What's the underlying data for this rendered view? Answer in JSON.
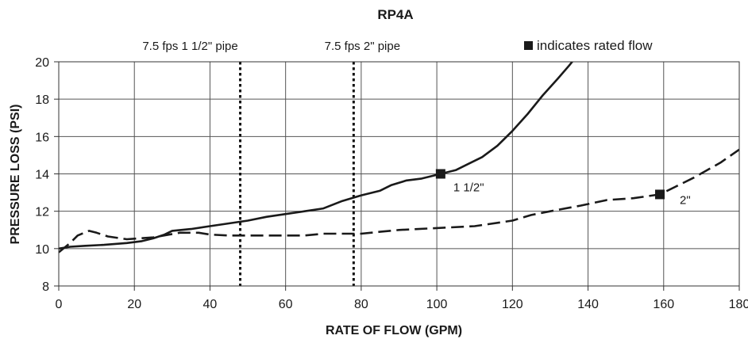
{
  "chart_data": {
    "type": "line",
    "title": "RP4A",
    "xlabel": "RATE OF FLOW (GPM)",
    "ylabel": "PRESSURE LOSS (PSI)",
    "xlim": [
      0,
      180
    ],
    "ylim": [
      8,
      20
    ],
    "x_ticks": [
      0,
      20,
      40,
      60,
      80,
      100,
      120,
      140,
      160,
      180
    ],
    "y_ticks": [
      8,
      10,
      12,
      14,
      16,
      18,
      20
    ],
    "grid": true,
    "legend_note": "indicates rated flow",
    "series": [
      {
        "name": "1 1/2\"",
        "style": "solid",
        "color": "#1a1a1a",
        "points": [
          [
            0,
            10.0
          ],
          [
            3,
            10.1
          ],
          [
            7,
            10.15
          ],
          [
            12,
            10.2
          ],
          [
            18,
            10.3
          ],
          [
            22,
            10.4
          ],
          [
            25,
            10.55
          ],
          [
            28,
            10.75
          ],
          [
            30,
            10.95
          ],
          [
            35,
            11.05
          ],
          [
            40,
            11.2
          ],
          [
            45,
            11.35
          ],
          [
            50,
            11.5
          ],
          [
            55,
            11.7
          ],
          [
            60,
            11.85
          ],
          [
            65,
            12.0
          ],
          [
            70,
            12.15
          ],
          [
            75,
            12.55
          ],
          [
            80,
            12.85
          ],
          [
            85,
            13.1
          ],
          [
            88,
            13.4
          ],
          [
            92,
            13.65
          ],
          [
            96,
            13.75
          ],
          [
            101,
            14.0
          ],
          [
            105,
            14.2
          ],
          [
            108,
            14.5
          ],
          [
            112,
            14.9
          ],
          [
            116,
            15.5
          ],
          [
            120,
            16.3
          ],
          [
            124,
            17.2
          ],
          [
            128,
            18.2
          ],
          [
            132,
            19.1
          ],
          [
            135,
            19.8
          ],
          [
            137,
            20.3
          ]
        ],
        "rated_flow": [
          101,
          14.0
        ],
        "label": "1 1/2\""
      },
      {
        "name": "2\"",
        "style": "dashed",
        "color": "#1a1a1a",
        "points": [
          [
            0,
            9.8
          ],
          [
            3,
            10.3
          ],
          [
            5,
            10.7
          ],
          [
            8,
            10.95
          ],
          [
            10,
            10.85
          ],
          [
            13,
            10.65
          ],
          [
            18,
            10.5
          ],
          [
            25,
            10.6
          ],
          [
            32,
            10.85
          ],
          [
            37,
            10.85
          ],
          [
            40,
            10.75
          ],
          [
            45,
            10.7
          ],
          [
            55,
            10.7
          ],
          [
            65,
            10.7
          ],
          [
            70,
            10.8
          ],
          [
            80,
            10.8
          ],
          [
            85,
            10.9
          ],
          [
            90,
            11.0
          ],
          [
            100,
            11.1
          ],
          [
            110,
            11.2
          ],
          [
            120,
            11.5
          ],
          [
            125,
            11.8
          ],
          [
            130,
            12.0
          ],
          [
            138,
            12.3
          ],
          [
            145,
            12.6
          ],
          [
            152,
            12.7
          ],
          [
            159,
            12.9
          ],
          [
            163,
            13.3
          ],
          [
            168,
            13.8
          ],
          [
            175,
            14.6
          ],
          [
            180,
            15.3
          ]
        ],
        "rated_flow": [
          159,
          12.9
        ],
        "label": "2\""
      }
    ],
    "reference_lines": [
      {
        "x": 48,
        "label": "7.5 fps 1 1/2\" pipe",
        "style": "dotted"
      },
      {
        "x": 78,
        "label": "7.5 fps 2\" pipe",
        "style": "dotted"
      }
    ]
  }
}
